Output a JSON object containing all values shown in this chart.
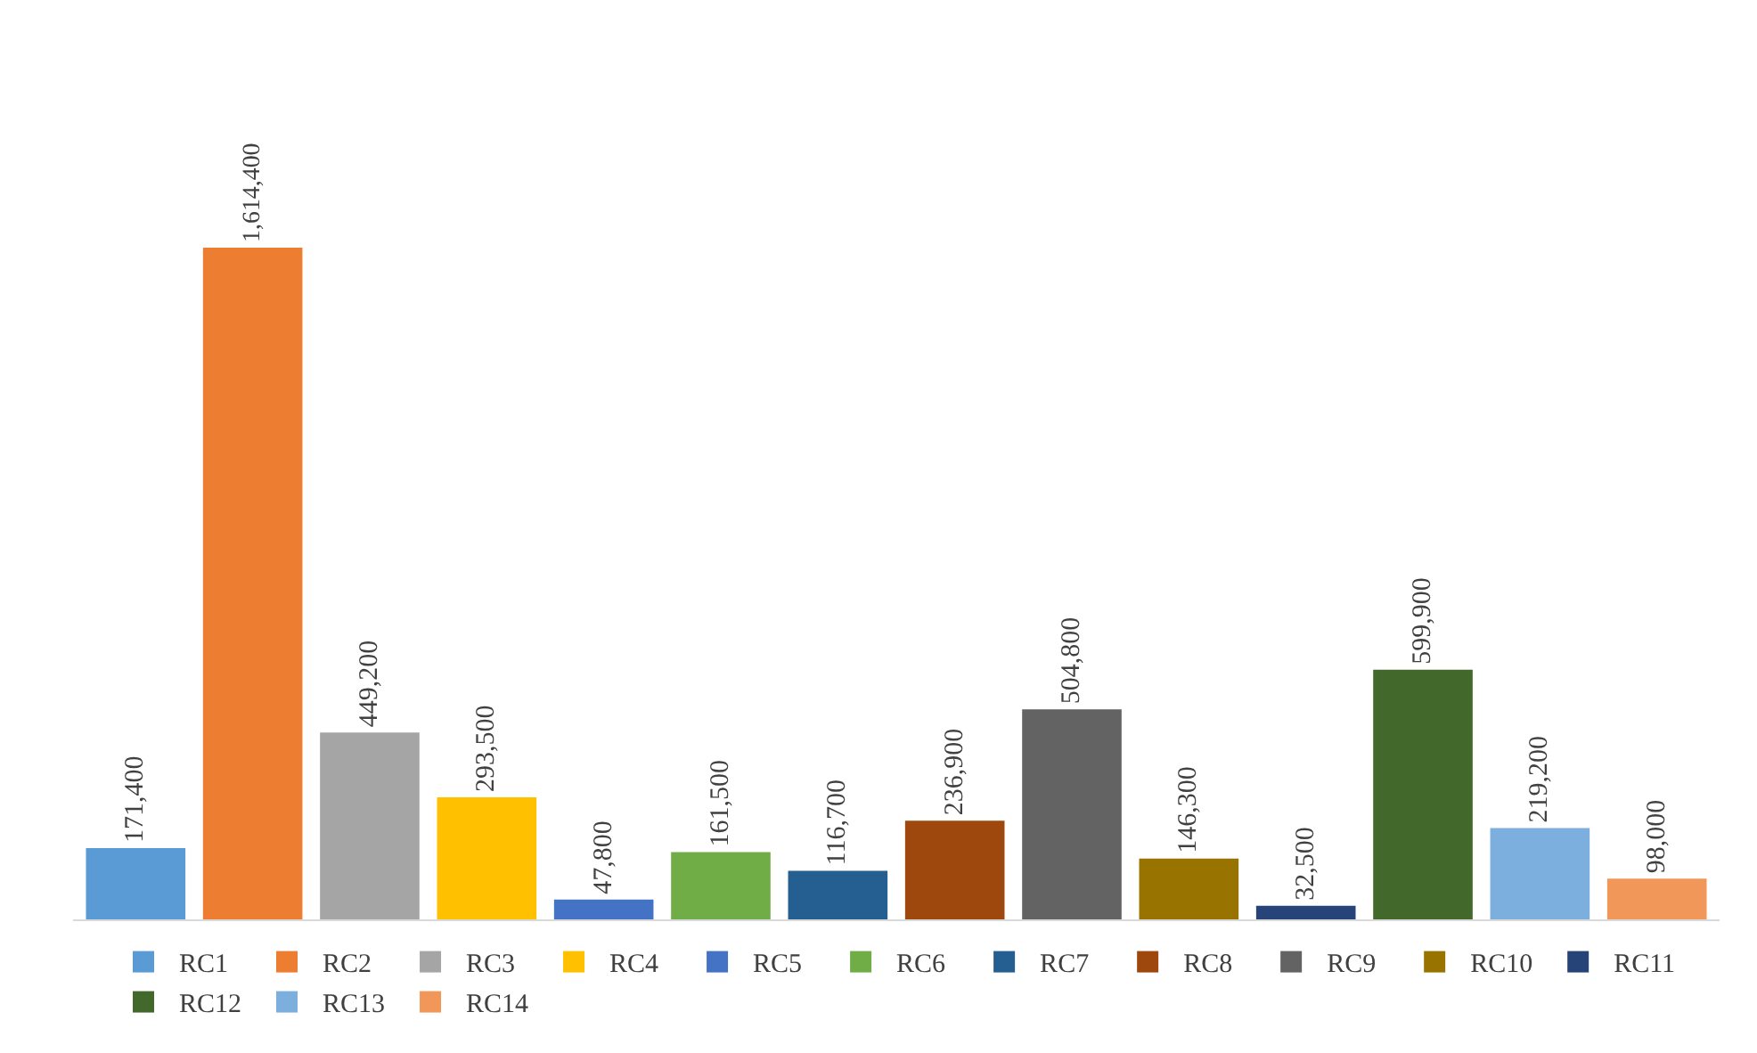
{
  "chart_data": {
    "type": "bar",
    "categories": [
      null
    ],
    "series": [
      {
        "name": "RC1",
        "color": "#5b9bd5",
        "values": [
          171400
        ],
        "value_labels": [
          "171,400"
        ]
      },
      {
        "name": "RC2",
        "color": "#ed7d31",
        "values": [
          1614400
        ],
        "value_labels": [
          "1,614,400"
        ]
      },
      {
        "name": "RC3",
        "color": "#a5a5a5",
        "values": [
          449200
        ],
        "value_labels": [
          "449,200"
        ]
      },
      {
        "name": "RC4",
        "color": "#ffc000",
        "values": [
          293500
        ],
        "value_labels": [
          "293,500"
        ]
      },
      {
        "name": "RC5",
        "color": "#4472c4",
        "values": [
          47800
        ],
        "value_labels": [
          "47,800"
        ]
      },
      {
        "name": "RC6",
        "color": "#70ad47",
        "values": [
          161500
        ],
        "value_labels": [
          "161,500"
        ]
      },
      {
        "name": "RC7",
        "color": "#255e91",
        "values": [
          116700
        ],
        "value_labels": [
          "116,700"
        ]
      },
      {
        "name": "RC8",
        "color": "#9e480e",
        "values": [
          236900
        ],
        "value_labels": [
          "236,900"
        ]
      },
      {
        "name": "RC9",
        "color": "#636363",
        "values": [
          504800
        ],
        "value_labels": [
          "504,800"
        ]
      },
      {
        "name": "RC10",
        "color": "#997300",
        "values": [
          146300
        ],
        "value_labels": [
          "146,300"
        ]
      },
      {
        "name": "RC11",
        "color": "#264478",
        "values": [
          32500
        ],
        "value_labels": [
          "32,500"
        ]
      },
      {
        "name": "RC12",
        "color": "#43682b",
        "values": [
          599900
        ],
        "value_labels": [
          "599,900"
        ]
      },
      {
        "name": "RC13",
        "color": "#7cafdd",
        "values": [
          219200
        ],
        "value_labels": [
          "219,200"
        ]
      },
      {
        "name": "RC14",
        "color": "#f1975a",
        "values": [
          98000
        ],
        "value_labels": [
          "98,000"
        ]
      }
    ],
    "legend": "bottom"
  }
}
